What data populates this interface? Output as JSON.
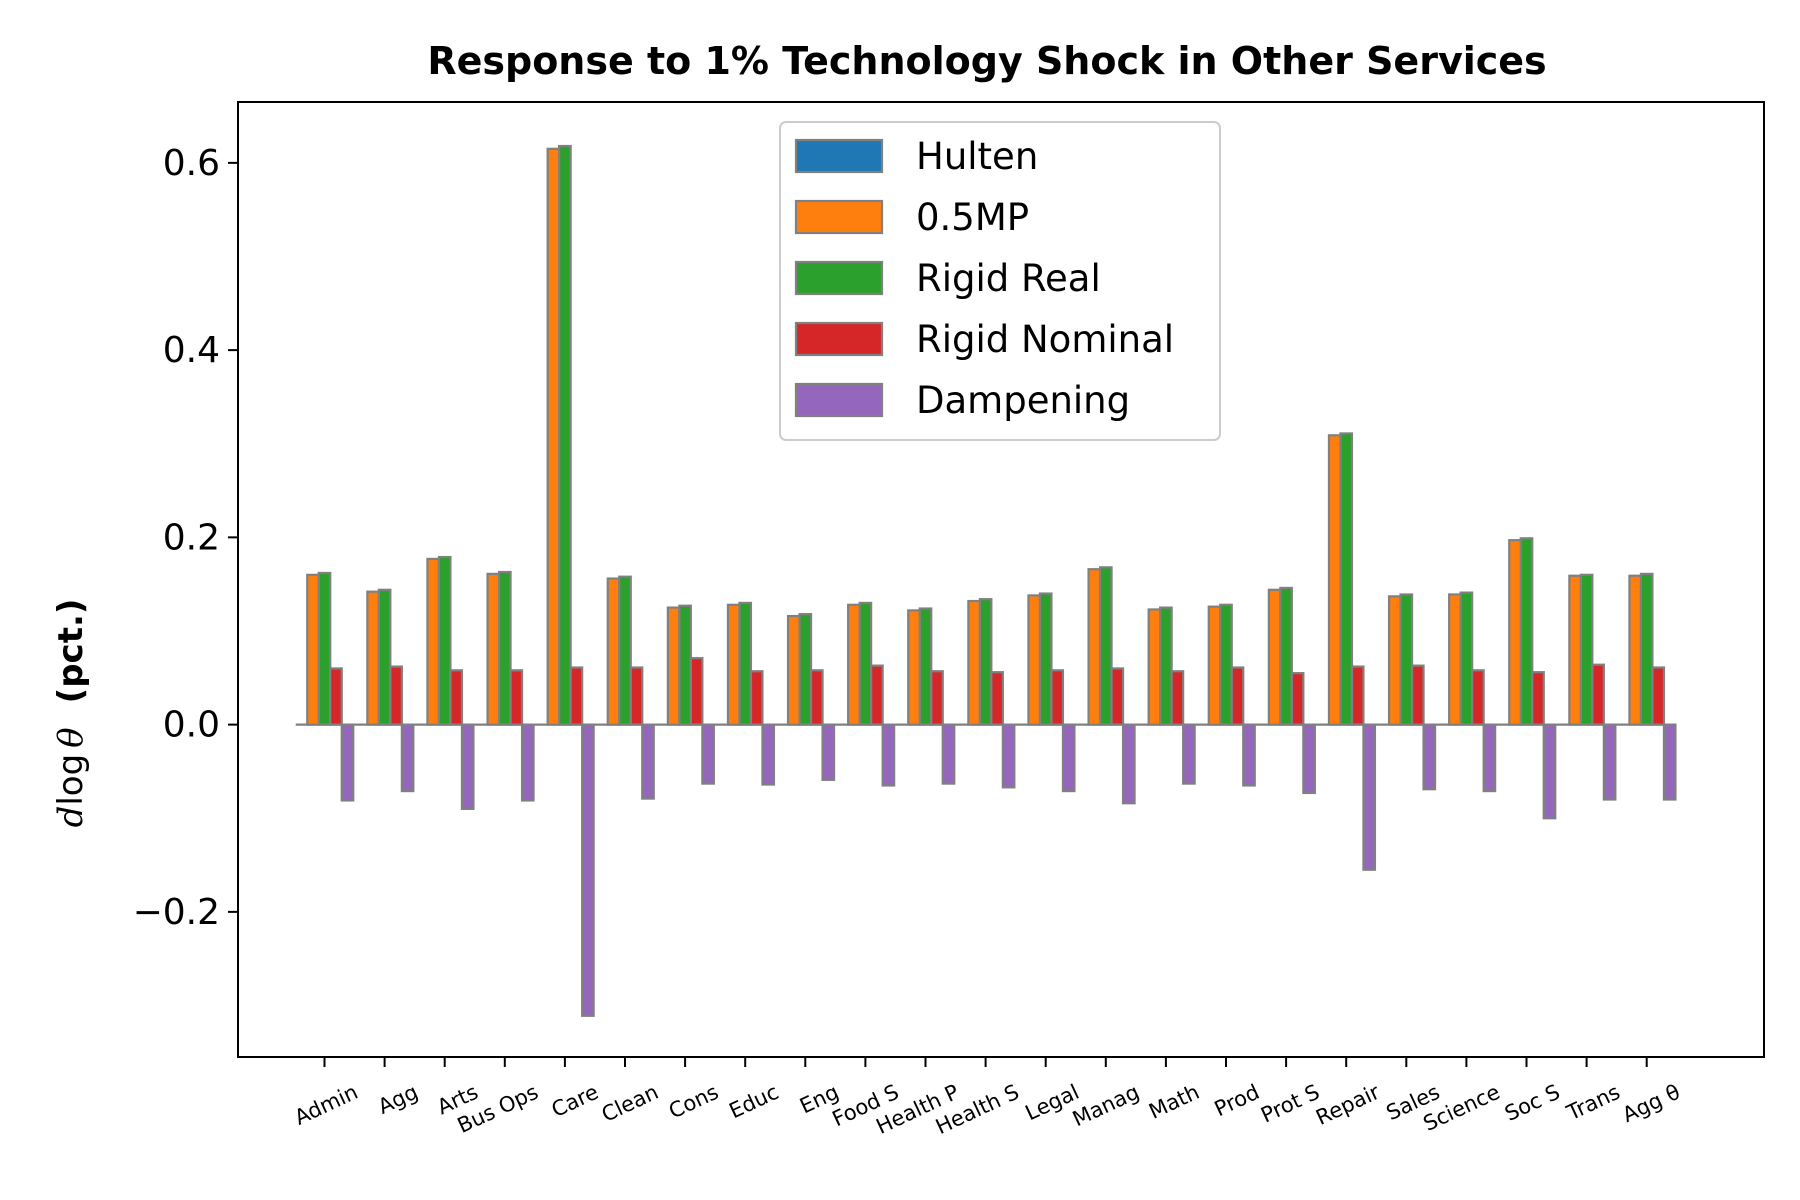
{
  "chart_data": {
    "type": "bar",
    "title": "Response to 1% Technology Shock in Other Services",
    "ylabel": {
      "prefix": "d",
      "log": "log",
      "theta": "θ",
      "unit": "(pct.)"
    },
    "ylim": [
      -0.355,
      0.665
    ],
    "yticks": [
      -0.2,
      0.0,
      0.2,
      0.4,
      0.6
    ],
    "ytick_labels": [
      "−0.2",
      "0.0",
      "0.2",
      "0.4",
      "0.6"
    ],
    "categories": [
      "Admin",
      "Agg",
      "Arts",
      "Bus Ops",
      "Care",
      "Clean",
      "Cons",
      "Educ",
      "Eng",
      "Food S",
      "Health P",
      "Health S",
      "Legal",
      "Manag",
      "Math",
      "Prod",
      "Prot S",
      "Repair",
      "Sales",
      "Science",
      "Soc S",
      "Trans",
      "Agg θ"
    ],
    "legend_position": "upper center",
    "grid": false,
    "series": [
      {
        "name": "Hulten",
        "color": "#1f77b4",
        "values": [
          0,
          0,
          0,
          0,
          0,
          0,
          0,
          0,
          0,
          0,
          0,
          0,
          0,
          0,
          0,
          0,
          0,
          0,
          0,
          0,
          0,
          0,
          0
        ]
      },
      {
        "name": "0.5MP",
        "color": "#ff7f0e",
        "values": [
          0.16,
          0.142,
          0.177,
          0.161,
          0.615,
          0.156,
          0.125,
          0.128,
          0.116,
          0.128,
          0.122,
          0.132,
          0.138,
          0.166,
          0.123,
          0.126,
          0.144,
          0.309,
          0.137,
          0.139,
          0.197,
          0.159,
          0.159
        ]
      },
      {
        "name": "Rigid Real",
        "color": "#2ca02c",
        "values": [
          0.162,
          0.144,
          0.179,
          0.163,
          0.618,
          0.158,
          0.127,
          0.13,
          0.118,
          0.13,
          0.124,
          0.134,
          0.14,
          0.168,
          0.125,
          0.128,
          0.146,
          0.311,
          0.139,
          0.141,
          0.199,
          0.16,
          0.161
        ]
      },
      {
        "name": "Rigid Nominal",
        "color": "#d62728",
        "values": [
          0.06,
          0.062,
          0.058,
          0.058,
          0.061,
          0.061,
          0.071,
          0.057,
          0.058,
          0.063,
          0.057,
          0.056,
          0.058,
          0.06,
          0.057,
          0.061,
          0.055,
          0.062,
          0.063,
          0.058,
          0.056,
          0.064,
          0.061
        ]
      },
      {
        "name": "Dampening",
        "color": "#9467bd",
        "values": [
          -0.081,
          -0.071,
          -0.09,
          -0.081,
          -0.311,
          -0.079,
          -0.063,
          -0.064,
          -0.059,
          -0.065,
          -0.063,
          -0.067,
          -0.071,
          -0.084,
          -0.063,
          -0.065,
          -0.073,
          -0.155,
          -0.069,
          -0.071,
          -0.1,
          -0.08,
          -0.08
        ]
      }
    ]
  }
}
